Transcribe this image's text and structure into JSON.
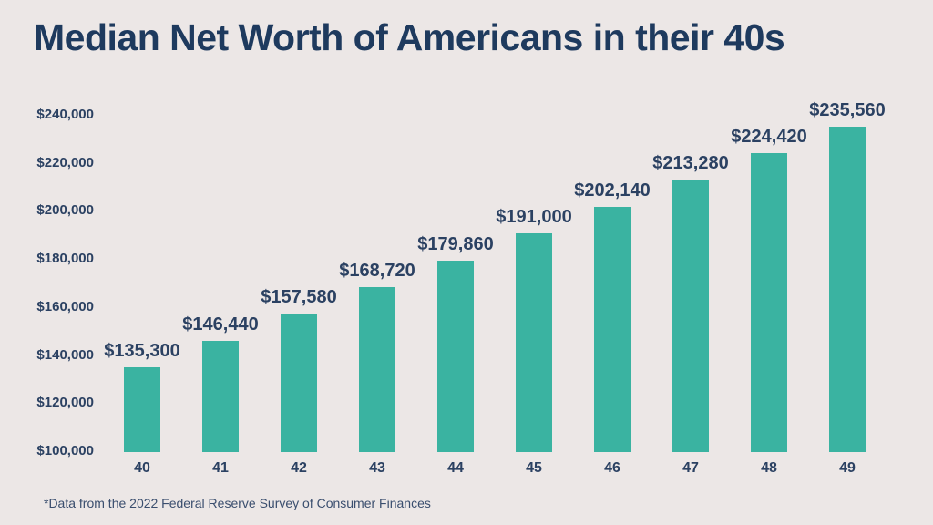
{
  "title": "Median Net Worth of Americans in their 40s",
  "footnote": "*Data from the 2022 Federal Reserve Survey of Consumer Finances",
  "colors": {
    "background": "#ECE7E6",
    "bar": "#3AB3A1",
    "title_text": "#1E3A5E",
    "label_text": "#2B4162",
    "footnote_text": "#3A4E6E"
  },
  "chart_data": {
    "type": "bar",
    "title": "Median Net Worth of Americans in their 40s",
    "xlabel": "",
    "ylabel": "",
    "categories": [
      "40",
      "41",
      "42",
      "43",
      "44",
      "45",
      "46",
      "47",
      "48",
      "49"
    ],
    "values": [
      135300,
      146440,
      157580,
      168720,
      179860,
      191000,
      202140,
      213280,
      224420,
      235560
    ],
    "value_labels": [
      "$135,300",
      "$146,440",
      "$157,580",
      "$168,720",
      "$179,860",
      "$191,000",
      "$202,140",
      "$213,280",
      "$224,420",
      "$235,560"
    ],
    "y_ticks": [
      "$240,000",
      "$220,000",
      "$200,000",
      "$180,000",
      "$160,000",
      "$140,000",
      "$120,000",
      "$100,000"
    ],
    "y_tick_values": [
      240000,
      220000,
      200000,
      180000,
      160000,
      140000,
      120000,
      100000
    ],
    "ylim": [
      100000,
      240000
    ],
    "grid": false,
    "legend": false,
    "footnote": "*Data from the 2022 Federal Reserve Survey of Consumer Finances"
  }
}
